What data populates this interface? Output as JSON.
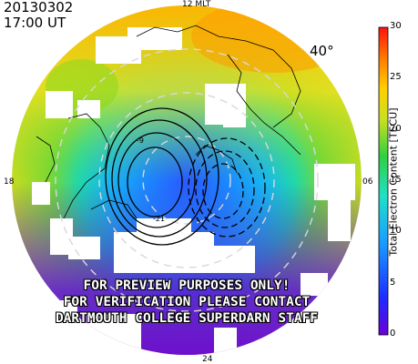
{
  "header": {
    "date": "20130302",
    "time": "17:00 UT"
  },
  "map": {
    "mlt_labels": {
      "top": "12 MLT",
      "left": "18",
      "right": "06",
      "bottom": "24"
    },
    "latitude_label": "40°",
    "warning_lines": [
      "FOR PREVIEW PURPOSES ONLY!",
      "FOR VERIFICATION PLEASE CONTACT",
      "DARTMOUTH COLLEGE SUPERDARN STAFF"
    ],
    "contour_labels": [
      "-9",
      "-21"
    ]
  },
  "colorbar": {
    "title": "Total Electron Content [TECU]",
    "min": 0,
    "max": 30,
    "ticks": [
      "0",
      "5",
      "10",
      "15",
      "20",
      "25",
      "30"
    ]
  },
  "colors": {
    "tec_scale": [
      "#6a00d8",
      "#1e2cff",
      "#1a9cff",
      "#20e0c8",
      "#30d040",
      "#c8e020",
      "#ffd000",
      "#ff7a00",
      "#ff1010"
    ]
  }
}
